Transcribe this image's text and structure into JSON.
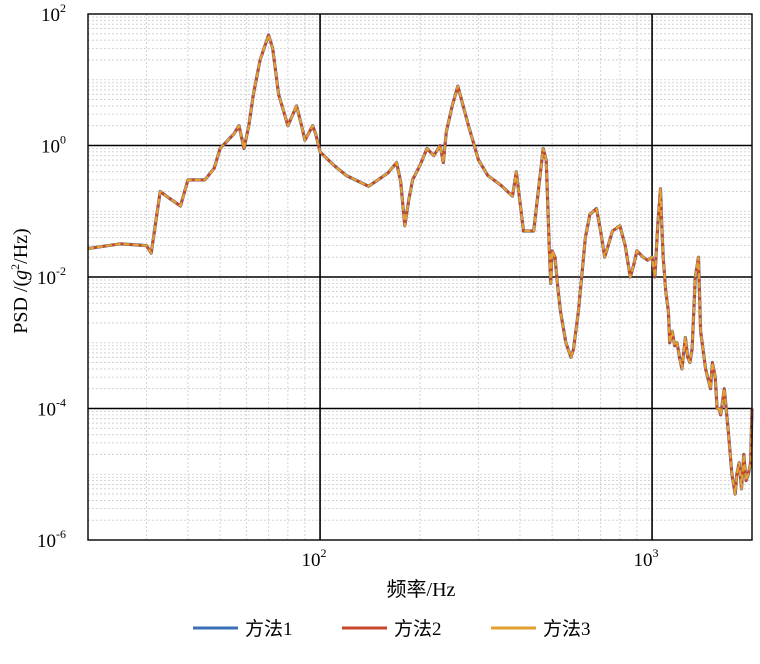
{
  "chart_data": {
    "type": "line",
    "xlabel": "频率/Hz",
    "ylabel_parts": {
      "pre": "PSD /(",
      "g": "g",
      "sup": "2",
      "post": "/Hz)"
    },
    "x_scale": "log",
    "y_scale": "log",
    "xlim": [
      20,
      2000
    ],
    "ylim": [
      1e-06,
      100
    ],
    "x_ticks": [
      {
        "value": 100,
        "base": "10",
        "exp": "2"
      },
      {
        "value": 1000,
        "base": "10",
        "exp": "3"
      }
    ],
    "y_ticks": [
      {
        "value": 1e-06,
        "base": "10",
        "exp": "-6"
      },
      {
        "value": 0.0001,
        "base": "10",
        "exp": "-4"
      },
      {
        "value": 0.01,
        "base": "10",
        "exp": "-2"
      },
      {
        "value": 1,
        "base": "10",
        "exp": "0"
      },
      {
        "value": 100,
        "base": "10",
        "exp": "2"
      }
    ],
    "grid": "major and minor",
    "legend_position": "bottom",
    "series": [
      {
        "name": "方法1",
        "color": "#3b6fb6"
      },
      {
        "name": "方法2",
        "color": "#c8462b"
      },
      {
        "name": "方法3",
        "color": "#e3a12f"
      }
    ],
    "x": [
      20,
      25,
      30,
      31,
      33,
      35,
      38,
      40,
      45,
      48,
      50,
      55,
      57,
      59,
      61,
      63,
      66,
      70,
      72,
      75,
      80,
      85,
      88,
      90,
      95,
      97,
      100,
      110,
      120,
      140,
      160,
      170,
      175,
      180,
      185,
      190,
      200,
      210,
      220,
      230,
      235,
      240,
      250,
      260,
      280,
      300,
      320,
      350,
      380,
      390,
      410,
      440,
      460,
      470,
      480,
      490,
      495,
      500,
      510,
      520,
      530,
      550,
      570,
      580,
      600,
      630,
      650,
      680,
      700,
      720,
      760,
      800,
      830,
      860,
      880,
      900,
      940,
      970,
      1000,
      1020,
      1040,
      1060,
      1070,
      1080,
      1100,
      1120,
      1130,
      1150,
      1170,
      1190,
      1210,
      1230,
      1260,
      1280,
      1300,
      1320,
      1350,
      1380,
      1400,
      1450,
      1500,
      1520,
      1550,
      1570,
      1590,
      1610,
      1650,
      1700,
      1740,
      1780,
      1800,
      1830,
      1860,
      1890,
      1920,
      1950,
      1980,
      2000
    ],
    "y": [
      0.027,
      0.032,
      0.03,
      0.023,
      0.2,
      0.16,
      0.12,
      0.3,
      0.3,
      0.45,
      0.9,
      1.5,
      2.0,
      0.9,
      2.0,
      6,
      20,
      48,
      30,
      6,
      2.0,
      4.0,
      2.0,
      1.2,
      2.0,
      1.5,
      0.8,
      0.5,
      0.35,
      0.24,
      0.38,
      0.55,
      0.28,
      0.06,
      0.15,
      0.3,
      0.5,
      0.9,
      0.7,
      1.0,
      0.55,
      1.6,
      4.0,
      8.0,
      2.0,
      0.6,
      0.35,
      0.25,
      0.17,
      0.4,
      0.05,
      0.05,
      0.35,
      0.9,
      0.6,
      0.03,
      0.008,
      0.025,
      0.02,
      0.007,
      0.003,
      0.001,
      0.0006,
      0.0008,
      0.003,
      0.04,
      0.09,
      0.11,
      0.05,
      0.02,
      0.05,
      0.06,
      0.03,
      0.01,
      0.015,
      0.025,
      0.02,
      0.018,
      0.02,
      0.01,
      0.06,
      0.22,
      0.06,
      0.02,
      0.006,
      0.003,
      0.001,
      0.0015,
      0.0009,
      0.001,
      0.0006,
      0.0004,
      0.0012,
      0.0006,
      0.0005,
      0.0008,
      0.01,
      0.02,
      0.0015,
      0.0004,
      0.0002,
      0.0005,
      0.0003,
      0.0001,
      0.0001,
      8e-05,
      0.0002,
      4e-05,
      1e-05,
      5e-06,
      1e-05,
      1.5e-05,
      6e-06,
      2e-05,
      8e-06,
      1e-05,
      1.5e-05,
      0.0001
    ]
  },
  "legend": {
    "items": [
      "方法1",
      "方法2",
      "方法3"
    ]
  }
}
